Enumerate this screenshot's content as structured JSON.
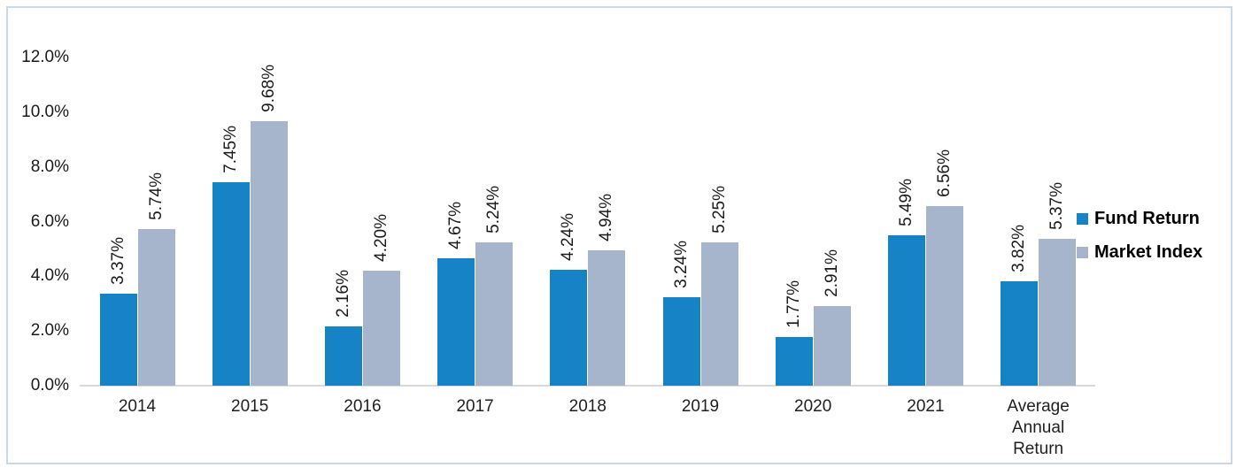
{
  "chart_data": {
    "type": "bar",
    "title": "",
    "xlabel": "",
    "ylabel": "",
    "categories": [
      "2014",
      "2015",
      "2016",
      "2017",
      "2018",
      "2019",
      "2020",
      "2021",
      "Average Annual Return"
    ],
    "series": [
      {
        "name": "Fund Return",
        "color": "#1583c6",
        "values": [
          3.37,
          7.45,
          2.16,
          4.67,
          4.24,
          3.24,
          1.77,
          5.49,
          3.82
        ],
        "data_labels": [
          "3.37%",
          "7.45%",
          "2.16%",
          "4.67%",
          "4.24%",
          "3.24%",
          "1.77%",
          "5.49%",
          "3.82%"
        ]
      },
      {
        "name": "Market Index",
        "color": "#a6b5cb",
        "values": [
          5.74,
          9.68,
          4.2,
          5.24,
          4.94,
          5.25,
          2.91,
          6.56,
          5.37
        ],
        "data_labels": [
          "5.74%",
          "9.68%",
          "4.20%",
          "5.24%",
          "4.94%",
          "5.25%",
          "2.91%",
          "6.56%",
          "5.37%"
        ]
      }
    ],
    "ylim": [
      0,
      12
    ],
    "y_ticks": [
      {
        "value": 0,
        "label": "0.0%"
      },
      {
        "value": 2,
        "label": "2.0%"
      },
      {
        "value": 4,
        "label": "4.0%"
      },
      {
        "value": 6,
        "label": "6.0%"
      },
      {
        "value": 8,
        "label": "8.0%"
      },
      {
        "value": 10,
        "label": "10.0%"
      },
      {
        "value": 12,
        "label": "12.0%"
      }
    ],
    "grid": false,
    "legend_position": "right",
    "data_label_rotation": -90
  },
  "colors": {
    "fund_return": "#1583c6",
    "market_index": "#a6b5cb",
    "axis_line": "#d9d9d9",
    "frame_border": "#c9d9ec",
    "label_text": "#1a1a1a",
    "background": "#ffffff"
  }
}
